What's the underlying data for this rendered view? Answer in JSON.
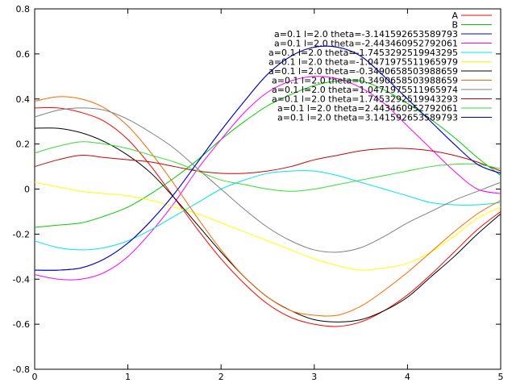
{
  "chart_data": {
    "type": "line",
    "xlim": [
      0,
      5
    ],
    "ylim": [
      -0.8,
      0.8
    ],
    "grid": false,
    "legend_position": "top-right",
    "x_ticks": [
      {
        "value": 0,
        "label": "0"
      },
      {
        "value": 1,
        "label": "1"
      },
      {
        "value": 2,
        "label": "2"
      },
      {
        "value": 3,
        "label": "3"
      },
      {
        "value": 4,
        "label": "4"
      },
      {
        "value": 5,
        "label": "5"
      }
    ],
    "y_ticks": [
      {
        "value": -0.8,
        "label": "-0.8"
      },
      {
        "value": -0.6,
        "label": "-0.6"
      },
      {
        "value": -0.4,
        "label": "-0.4"
      },
      {
        "value": -0.2,
        "label": "-0.2"
      },
      {
        "value": 0,
        "label": "0"
      },
      {
        "value": 0.2,
        "label": "0.2"
      },
      {
        "value": 0.4,
        "label": "0.4"
      },
      {
        "value": 0.6,
        "label": "0.6"
      },
      {
        "value": 0.8,
        "label": "0.8"
      }
    ],
    "x": [
      0,
      0.25,
      0.5,
      0.75,
      1.0,
      1.25,
      1.5,
      1.75,
      2.0,
      2.25,
      2.5,
      2.75,
      3.0,
      3.25,
      3.5,
      3.75,
      4.0,
      4.25,
      4.5,
      4.75,
      5.0
    ],
    "series": [
      {
        "name": "A",
        "color": "#ff0000",
        "values": [
          0.36,
          0.36,
          0.34,
          0.3,
          0.22,
          0.1,
          -0.04,
          -0.18,
          -0.31,
          -0.42,
          -0.51,
          -0.57,
          -0.6,
          -0.61,
          -0.59,
          -0.54,
          -0.47,
          -0.38,
          -0.28,
          -0.18,
          -0.1
        ]
      },
      {
        "name": "B",
        "color": "#00cc00",
        "values": [
          -0.17,
          -0.16,
          -0.15,
          -0.12,
          -0.08,
          -0.02,
          0.05,
          0.13,
          0.22,
          0.3,
          0.37,
          0.42,
          0.46,
          0.48,
          0.48,
          0.44,
          0.38,
          0.31,
          0.23,
          0.14,
          0.06
        ]
      },
      {
        "name": "a=0.1 l=2.0 theta=-3.141592653589793",
        "color": "#0000ff",
        "values": [
          -0.36,
          -0.36,
          -0.35,
          -0.31,
          -0.24,
          -0.14,
          -0.02,
          0.12,
          0.26,
          0.39,
          0.51,
          0.59,
          0.63,
          0.63,
          0.59,
          0.5,
          0.4,
          0.3,
          0.2,
          0.11,
          0.07
        ]
      },
      {
        "name": "a=0.1 l=2.0 theta=-2.443460952792061",
        "color": "#ff00ff",
        "values": [
          -0.38,
          -0.4,
          -0.4,
          -0.37,
          -0.3,
          -0.19,
          -0.06,
          0.09,
          0.22,
          0.34,
          0.43,
          0.48,
          0.5,
          0.49,
          0.45,
          0.38,
          0.28,
          0.18,
          0.08,
          0.0,
          -0.02
        ]
      },
      {
        "name": "a=0.1 l=2.0 theta=-1.7453292519943295",
        "color": "#00e5e5",
        "values": [
          -0.23,
          -0.26,
          -0.27,
          -0.26,
          -0.23,
          -0.18,
          -0.12,
          -0.06,
          0.0,
          0.04,
          0.07,
          0.08,
          0.08,
          0.06,
          0.03,
          0.0,
          -0.03,
          -0.06,
          -0.07,
          -0.07,
          -0.06
        ]
      },
      {
        "name": "a=0.1 l=2.0 theta=-1.0471975511965979",
        "color": "#ffff00",
        "values": [
          0.03,
          0.01,
          -0.01,
          -0.02,
          -0.03,
          -0.05,
          -0.08,
          -0.11,
          -0.15,
          -0.19,
          -0.23,
          -0.27,
          -0.31,
          -0.34,
          -0.36,
          -0.35,
          -0.33,
          -0.28,
          -0.21,
          -0.13,
          -0.08
        ]
      },
      {
        "name": "a=0.1 l=2.0 theta=-0.3490658503988659",
        "color": "#000000",
        "values": [
          0.27,
          0.27,
          0.25,
          0.21,
          0.15,
          0.07,
          -0.04,
          -0.16,
          -0.28,
          -0.39,
          -0.48,
          -0.54,
          -0.58,
          -0.59,
          -0.58,
          -0.54,
          -0.48,
          -0.39,
          -0.3,
          -0.2,
          -0.11
        ]
      },
      {
        "name": "a=0.1 l=2.0 theta=0.3490658503988659",
        "color": "#ff6600",
        "values": [
          0.39,
          0.41,
          0.4,
          0.36,
          0.28,
          0.16,
          0.02,
          -0.13,
          -0.27,
          -0.39,
          -0.48,
          -0.54,
          -0.56,
          -0.56,
          -0.52,
          -0.45,
          -0.37,
          -0.28,
          -0.19,
          -0.11,
          -0.05
        ]
      },
      {
        "name": "a=0.1 l=2.0 theta=1.0471975511965974",
        "color": "#808080",
        "values": [
          0.32,
          0.35,
          0.36,
          0.35,
          0.31,
          0.25,
          0.18,
          0.09,
          0.0,
          -0.09,
          -0.17,
          -0.23,
          -0.27,
          -0.28,
          -0.26,
          -0.21,
          -0.15,
          -0.1,
          -0.05,
          -0.01,
          0.03
        ]
      },
      {
        "name": "a=0.1 l=2.0 theta=1.7453292519943293",
        "color": "#cc0000",
        "values": [
          0.1,
          0.13,
          0.15,
          0.14,
          0.13,
          0.12,
          0.1,
          0.08,
          0.07,
          0.07,
          0.08,
          0.1,
          0.13,
          0.15,
          0.17,
          0.18,
          0.18,
          0.17,
          0.15,
          0.12,
          0.08
        ]
      },
      {
        "name": "a=0.1 l=2.0 theta=2.443460952792061",
        "color": "#33dd33",
        "values": [
          0.16,
          0.19,
          0.21,
          0.2,
          0.18,
          0.15,
          0.12,
          0.08,
          0.04,
          0.02,
          0.0,
          -0.01,
          0.0,
          0.02,
          0.04,
          0.06,
          0.08,
          0.1,
          0.11,
          0.11,
          0.09
        ]
      },
      {
        "name": "a=0.1 l=2.0 theta=3.141592653589793",
        "color": "#0000cc",
        "values": [
          -0.36,
          -0.36,
          -0.35,
          -0.31,
          -0.24,
          -0.14,
          -0.02,
          0.12,
          0.26,
          0.39,
          0.51,
          0.59,
          0.63,
          0.63,
          0.59,
          0.5,
          0.4,
          0.3,
          0.2,
          0.11,
          0.07
        ]
      }
    ]
  }
}
